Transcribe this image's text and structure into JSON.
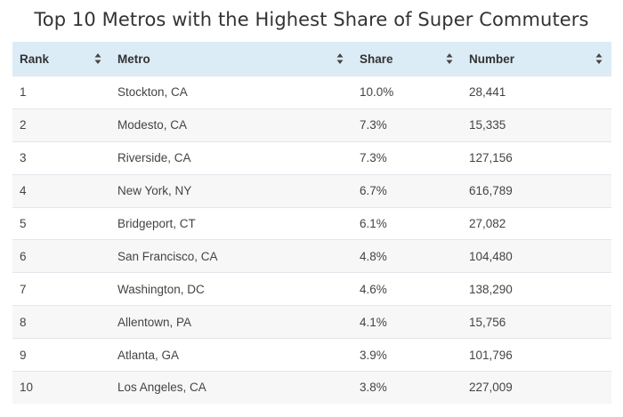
{
  "title": "Top 10 Metros with the Highest Share of Super Commuters",
  "columns": [
    {
      "label": "Rank",
      "sort_icon": "sort-updown-icon"
    },
    {
      "label": "Metro",
      "sort_icon": "sort-updown-icon"
    },
    {
      "label": "Share",
      "sort_icon": "sort-updown-icon"
    },
    {
      "label": "Number",
      "sort_icon": "sort-updown-icon"
    }
  ],
  "rows": [
    {
      "rank": "1",
      "metro": "Stockton, CA",
      "share": "10.0%",
      "number": "28,441"
    },
    {
      "rank": "2",
      "metro": "Modesto, CA",
      "share": "7.3%",
      "number": "15,335"
    },
    {
      "rank": "3",
      "metro": "Riverside, CA",
      "share": "7.3%",
      "number": "127,156"
    },
    {
      "rank": "4",
      "metro": "New York, NY",
      "share": "6.7%",
      "number": "616,789"
    },
    {
      "rank": "5",
      "metro": "Bridgeport, CT",
      "share": "6.1%",
      "number": "27,082"
    },
    {
      "rank": "6",
      "metro": "San Francisco, CA",
      "share": "4.8%",
      "number": "104,480"
    },
    {
      "rank": "7",
      "metro": "Washington, DC",
      "share": "4.6%",
      "number": "138,290"
    },
    {
      "rank": "8",
      "metro": "Allentown, PA",
      "share": "4.1%",
      "number": "15,756"
    },
    {
      "rank": "9",
      "metro": "Atlanta, GA",
      "share": "3.9%",
      "number": "101,796"
    },
    {
      "rank": "10",
      "metro": "Los Angeles, CA",
      "share": "3.8%",
      "number": "227,009"
    }
  ],
  "colors": {
    "header_bg": "#dcecf7",
    "row_stripe": "#f7f7f7",
    "text": "#333333"
  }
}
